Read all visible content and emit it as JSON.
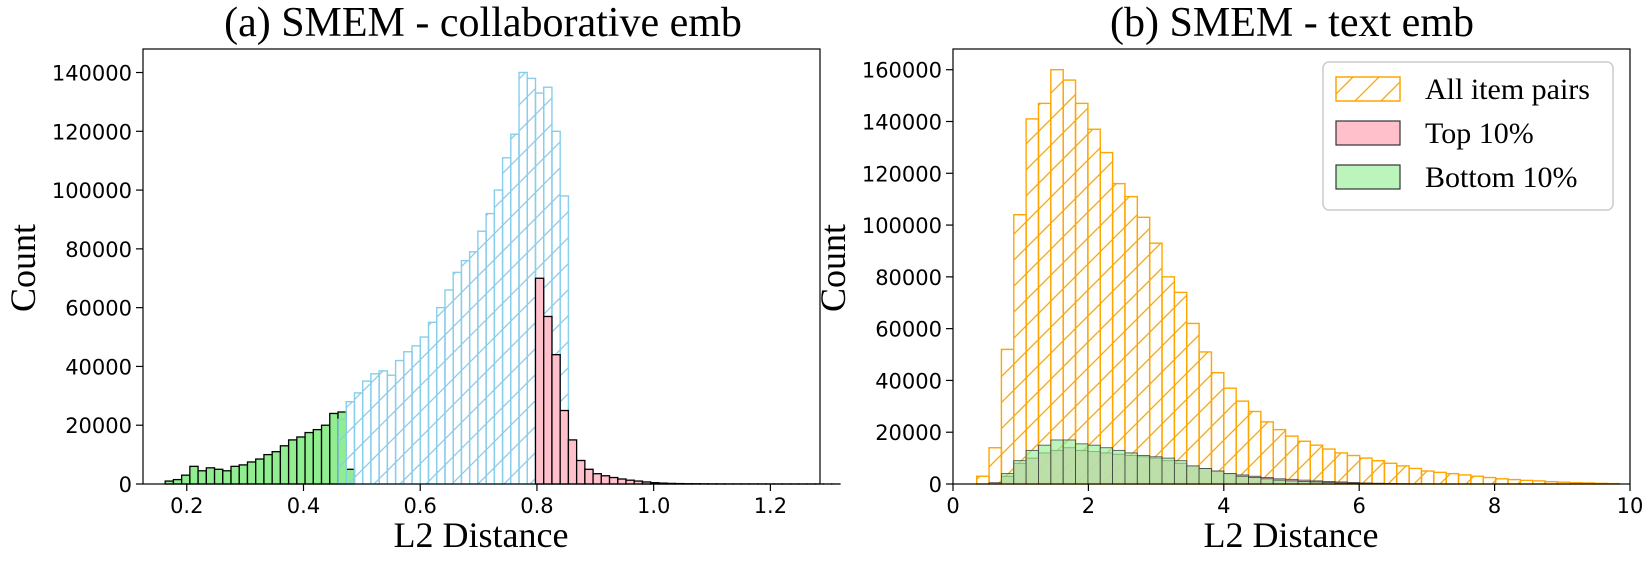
{
  "chart_data": [
    {
      "type": "bar",
      "title": "(a) SMEM - collaborative emb",
      "xlabel": "L2 Distance",
      "ylabel": "Count",
      "xlim": [
        0.125,
        1.285
      ],
      "ylim": [
        0,
        148000
      ],
      "xticks": [
        0.2,
        0.4,
        0.6,
        0.8,
        1.0,
        1.2
      ],
      "xtick_labels": [
        "0.2",
        "0.4",
        "0.6",
        "0.8",
        "1.0",
        "1.2"
      ],
      "yticks": [
        0,
        20000,
        40000,
        60000,
        80000,
        100000,
        120000,
        140000
      ],
      "ytick_labels": [
        "0",
        "20000",
        "40000",
        "60000",
        "80000",
        "100000",
        "120000",
        "140000"
      ],
      "bin_start": 0.163,
      "bin_width": 0.0141,
      "series": [
        {
          "name": "Bottom 10%",
          "color": "#90EE90",
          "edge": "#000000",
          "hatch": false,
          "bin_offset": 0,
          "values": [
            1000,
            1500,
            3000,
            6000,
            4500,
            5500,
            5000,
            4500,
            6000,
            6500,
            7500,
            8500,
            10000,
            11000,
            13000,
            15000,
            16000,
            17500,
            18500,
            20000,
            24000,
            24500,
            5000
          ]
        },
        {
          "name": "All item pairs",
          "color": "#87CEEB",
          "edge": "#87CEEB",
          "hatch": true,
          "bin_offset": 21,
          "values": [
            22000,
            28000,
            31000,
            35000,
            37500,
            38500,
            37000,
            42000,
            45000,
            47000,
            50000,
            55000,
            60000,
            66000,
            72000,
            76000,
            79000,
            86000,
            92000,
            100000,
            111000,
            119000,
            140000,
            138000,
            133000,
            135000,
            120000,
            98000
          ]
        },
        {
          "name": "Top 10%",
          "color": "#FFC0CB",
          "edge": "#000000",
          "hatch": false,
          "bin_offset": 45,
          "values": [
            70000,
            57000,
            44000,
            25000,
            15000,
            8000,
            5000,
            3500,
            2800,
            2200,
            1700,
            1300,
            1000,
            700,
            450,
            300,
            200,
            150,
            100,
            80,
            60,
            40,
            30,
            20,
            20,
            20,
            20,
            20,
            10,
            10,
            10,
            10,
            10,
            10,
            10,
            10,
            10
          ]
        }
      ]
    },
    {
      "type": "bar",
      "title": "(b) SMEM - text emb",
      "xlabel": "L2 Distance",
      "ylabel": "Count",
      "xlim": [
        0,
        10
      ],
      "ylim": [
        0,
        168000
      ],
      "xticks": [
        0,
        2,
        4,
        6,
        8,
        10
      ],
      "xtick_labels": [
        "0",
        "2",
        "4",
        "6",
        "8",
        "10"
      ],
      "yticks": [
        0,
        20000,
        40000,
        60000,
        80000,
        100000,
        120000,
        140000,
        160000
      ],
      "ytick_labels": [
        "0",
        "20000",
        "40000",
        "60000",
        "80000",
        "100000",
        "120000",
        "140000",
        "160000"
      ],
      "bin_start": 0.35,
      "bin_width": 0.1825,
      "legend": {
        "position": "top-right",
        "entries": [
          "All item pairs",
          "Top 10%",
          "Bottom 10%"
        ]
      },
      "series": [
        {
          "name": "All item pairs",
          "color": "#FFA500",
          "edge": "#FFA500",
          "hatch": true,
          "bin_offset": 0,
          "values": [
            3000,
            14000,
            52000,
            104000,
            141000,
            147000,
            160000,
            156000,
            147000,
            137000,
            128000,
            116000,
            111000,
            103000,
            93000,
            80000,
            74000,
            62000,
            51000,
            43000,
            37000,
            32000,
            28000,
            24000,
            21000,
            18500,
            16500,
            15000,
            13500,
            12000,
            11000,
            10000,
            9000,
            8000,
            7000,
            6000,
            5000,
            4500,
            4000,
            3500,
            3000,
            2500,
            2000,
            1700,
            1400,
            1200,
            900,
            700,
            500,
            400,
            250,
            150
          ]
        },
        {
          "name": "Top 10%",
          "color": "#FFC0CB",
          "edge": "#000000",
          "hatch": false,
          "bin_offset": 2,
          "values": [
            3000,
            8000,
            10000,
            12000,
            13000,
            14000,
            13000,
            12500,
            12000,
            11500,
            11000,
            10500,
            10000,
            9000,
            8000,
            7000,
            6000,
            5000,
            4000,
            3500,
            3000,
            2500,
            2000,
            1800,
            1500,
            1200,
            1000,
            800,
            600,
            400,
            300,
            200,
            150,
            100,
            80,
            60,
            50,
            40,
            30,
            20,
            10
          ]
        },
        {
          "name": "Bottom 10%",
          "color": "#90EE90",
          "edge": "#000000",
          "hatch": false,
          "bin_offset": 1,
          "values": [
            500,
            4000,
            9000,
            13000,
            15000,
            17000,
            17000,
            15500,
            15000,
            14000,
            13000,
            12000,
            11000,
            10500,
            10000,
            9000,
            7000,
            6000,
            5000,
            4000,
            3000,
            2500,
            2000,
            1500,
            1200,
            1000,
            800,
            600,
            400,
            300,
            200,
            100
          ]
        }
      ]
    }
  ]
}
